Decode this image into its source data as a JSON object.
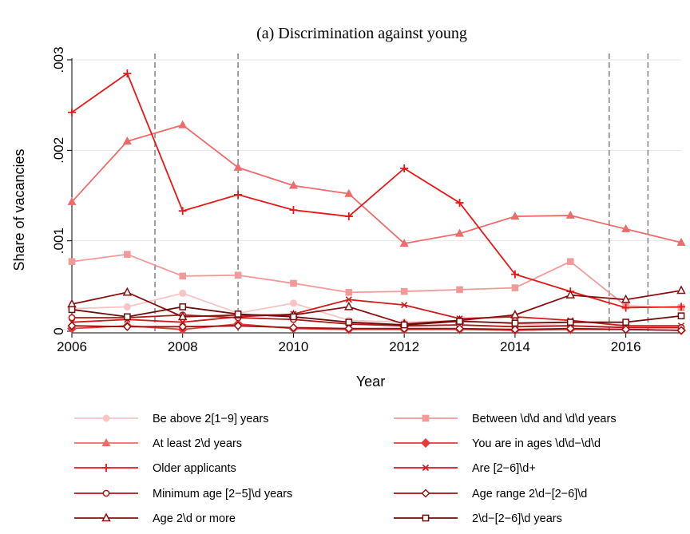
{
  "chart_data": {
    "type": "line",
    "title": "(a) Discrimination against young",
    "xlabel": "Year",
    "ylabel": "Share of vacancies",
    "xlim": [
      2006,
      2017
    ],
    "ylim": [
      0,
      0.003
    ],
    "x_ticks": [
      2006,
      2008,
      2010,
      2012,
      2014,
      2016
    ],
    "x_tick_labels": [
      "2006",
      "2008",
      "2010",
      "2012",
      "2014",
      "2016"
    ],
    "y_ticks": [
      0,
      0.001,
      0.002,
      0.003
    ],
    "y_tick_labels": [
      "0",
      ".001",
      ".002",
      ".003"
    ],
    "reference_lines_x": [
      2007.5,
      2009,
      2015.7,
      2016.4
    ],
    "grid": "horizontal",
    "legend_position": "bottom",
    "x": [
      2006,
      2007,
      2008,
      2009,
      2010,
      2011,
      2012,
      2013,
      2014,
      2015,
      2016,
      2017
    ],
    "series": [
      {
        "name": "Be above 2[1−9] years",
        "color": "#f8c4c4",
        "marker": "circle-filled",
        "values": [
          0.00025,
          0.00027,
          0.00042,
          0.0002,
          0.00031,
          0.00012,
          0.0001,
          0.00012,
          8e-05,
          6e-05,
          5e-05,
          4e-05
        ]
      },
      {
        "name": "Between \\d\\d and \\d\\d years",
        "color": "#f29a9a",
        "marker": "square-filled",
        "values": [
          0.00077,
          0.00085,
          0.00061,
          0.00062,
          0.00053,
          0.00043,
          0.00044,
          0.00046,
          0.00048,
          0.00077,
          0.00028,
          0.00026
        ]
      },
      {
        "name": "At least 2\\d years",
        "color": "#ee6b6b",
        "marker": "triangle-filled",
        "values": [
          0.00143,
          0.0021,
          0.00228,
          0.00181,
          0.00161,
          0.00152,
          0.00097,
          0.00108,
          0.00127,
          0.00128,
          0.00113,
          0.00098
        ]
      },
      {
        "name": "You are in ages \\d\\d−\\d\\d",
        "color": "#e83a3a",
        "marker": "diamond-filled",
        "values": [
          3e-05,
          6e-05,
          2e-05,
          8e-05,
          3e-05,
          2e-05,
          2e-05,
          2e-05,
          1e-05,
          2e-05,
          2e-05,
          1e-05
        ]
      },
      {
        "name": "Older applicants",
        "color": "#e81818",
        "marker": "plus",
        "values": [
          0.00242,
          0.00285,
          0.00133,
          0.00151,
          0.00134,
          0.00127,
          0.0018,
          0.00142,
          0.00063,
          0.00044,
          0.00026,
          0.00027
        ]
      },
      {
        "name": "Are [2−6]\\d+",
        "color": "#cc1c1c",
        "marker": "x",
        "values": [
          0.0001,
          0.00013,
          0.0001,
          0.00016,
          0.00019,
          0.00035,
          0.00029,
          0.00014,
          0.00016,
          0.00012,
          6e-05,
          6e-05
        ]
      },
      {
        "name": "Minimum age [2−5]\\d years",
        "color": "#b01818",
        "marker": "circle-hollow",
        "values": [
          0.00015,
          0.00015,
          0.00018,
          0.00015,
          0.00013,
          8e-05,
          6e-05,
          7e-05,
          5e-05,
          6e-05,
          4e-05,
          4e-05
        ]
      },
      {
        "name": "Age range 2\\d−[2−6]\\d",
        "color": "#9a1212",
        "marker": "diamond-hollow",
        "values": [
          6e-05,
          5e-05,
          5e-05,
          6e-05,
          4e-05,
          3e-05,
          3e-05,
          3e-05,
          2e-05,
          3e-05,
          2e-05,
          1e-05
        ]
      },
      {
        "name": "Age 2\\d or more",
        "color": "#8a1010",
        "marker": "triangle-hollow",
        "values": [
          0.0003,
          0.00043,
          0.00016,
          0.00018,
          0.00018,
          0.00027,
          8e-05,
          0.00012,
          0.00018,
          0.0004,
          0.00035,
          0.00045
        ]
      },
      {
        "name": "2\\d−[2−6]\\d years",
        "color": "#6e0c0c",
        "marker": "square-hollow",
        "values": [
          0.00024,
          0.00016,
          0.00027,
          0.00019,
          0.00016,
          0.0001,
          7e-05,
          0.00011,
          9e-05,
          0.0001,
          0.0001,
          0.00017
        ]
      }
    ]
  }
}
